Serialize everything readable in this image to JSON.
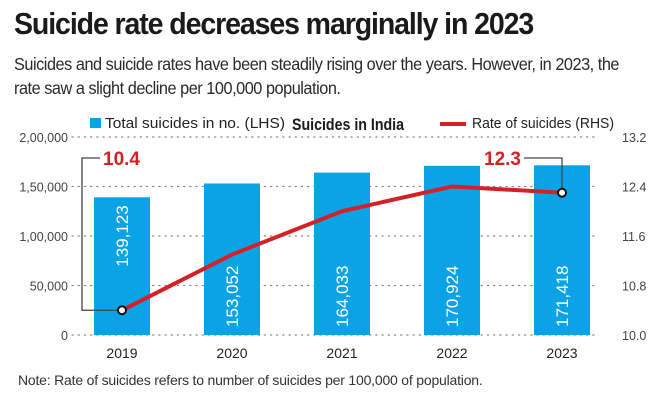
{
  "header": {
    "title": "Suicide rate decreases marginally in 2023",
    "subtitle": "Suicides and suicide rates have been steadily rising over the years. However, in 2023, the rate saw a slight decline per 100,000 population."
  },
  "note": "Note: Rate of suicides refers to number of suicides per 100,000 of population.",
  "colors": {
    "bar": "#0aa3e6",
    "line": "#d42027",
    "text": "#222222",
    "grid": "#888888"
  },
  "chart_data": {
    "type": "bar",
    "title": "Suicides in India",
    "categories": [
      "2019",
      "2020",
      "2021",
      "2022",
      "2023"
    ],
    "series": [
      {
        "name": "Total suicides in no. (LHS)",
        "type": "bar",
        "axis": "left",
        "values": [
          139123,
          153052,
          164033,
          170924,
          171418
        ],
        "labels": [
          "139,123",
          "153,052",
          "164,033",
          "170,924",
          "171,418"
        ]
      },
      {
        "name": "Rate of suicides (RHS)",
        "type": "line",
        "axis": "right",
        "values": [
          10.4,
          11.3,
          12.0,
          12.4,
          12.3
        ]
      }
    ],
    "left_axis": {
      "ylim": [
        0,
        200000
      ],
      "ticks": [
        0,
        50000,
        100000,
        150000,
        200000
      ],
      "tick_labels": [
        "0",
        "50,000",
        "1,00,000",
        "1,50,000",
        "2,00,000"
      ]
    },
    "right_axis": {
      "ylim": [
        10.0,
        13.2
      ],
      "ticks": [
        10.0,
        10.8,
        11.6,
        12.4,
        13.2
      ],
      "tick_labels": [
        "10.0",
        "10.8",
        "11.6",
        "12.4",
        "13.2"
      ]
    },
    "annotations": [
      {
        "category": "2019",
        "text": "10.4"
      },
      {
        "category": "2023",
        "text": "12.3"
      }
    ],
    "legend": "top",
    "grid": true
  }
}
